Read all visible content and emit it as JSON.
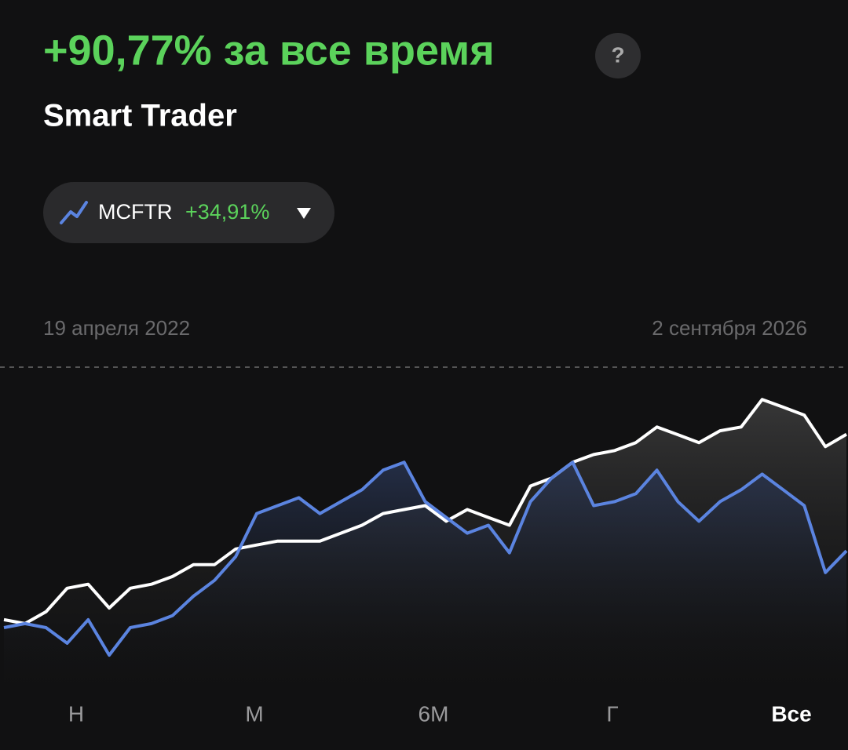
{
  "header": {
    "title": "+90,77% за все время",
    "help": "?"
  },
  "chart_data": {
    "type": "line",
    "series": [
      {
        "name": "Smart Trader",
        "color": "#ffffff",
        "values": [
          1.9,
          0,
          5.7,
          17,
          18.9,
          7.5,
          17,
          18.9,
          22.6,
          28.3,
          28.3,
          35.8,
          37.7,
          39.6,
          39.6,
          39.6,
          43.4,
          47.2,
          52.8,
          54.7,
          56.6,
          49.1,
          54.7,
          50.9,
          47.2,
          66,
          69.8,
          77.4,
          81.1,
          83,
          86.8,
          94.3,
          90.6,
          86.8,
          92.5,
          94.3,
          107.5,
          103.8,
          100,
          84.9,
          90.8
        ]
      },
      {
        "name": "MCFTR",
        "color": "#5b84e0",
        "change": "+34,91%",
        "values": [
          -1.9,
          0,
          -1.9,
          -9.4,
          1.9,
          -15.1,
          -1.9,
          0,
          3.8,
          13.2,
          20.8,
          32.1,
          52.8,
          56.6,
          60.4,
          52.8,
          58.5,
          64.2,
          73.6,
          77.4,
          58.5,
          50.9,
          43.4,
          47.2,
          34,
          58.5,
          69.8,
          77.4,
          56.6,
          58.5,
          62.3,
          73.6,
          58.5,
          49.1,
          58.5,
          64.2,
          71.7,
          64.2,
          56.6,
          24.5,
          34.9
        ]
      }
    ],
    "ylim": [
      -32,
      123
    ],
    "start_date": "19 апреля 2022",
    "end_date": "2 сентября 2026"
  },
  "periods": [
    "Н",
    "М",
    "6М",
    "Г",
    "Все"
  ],
  "selected_period": 4
}
